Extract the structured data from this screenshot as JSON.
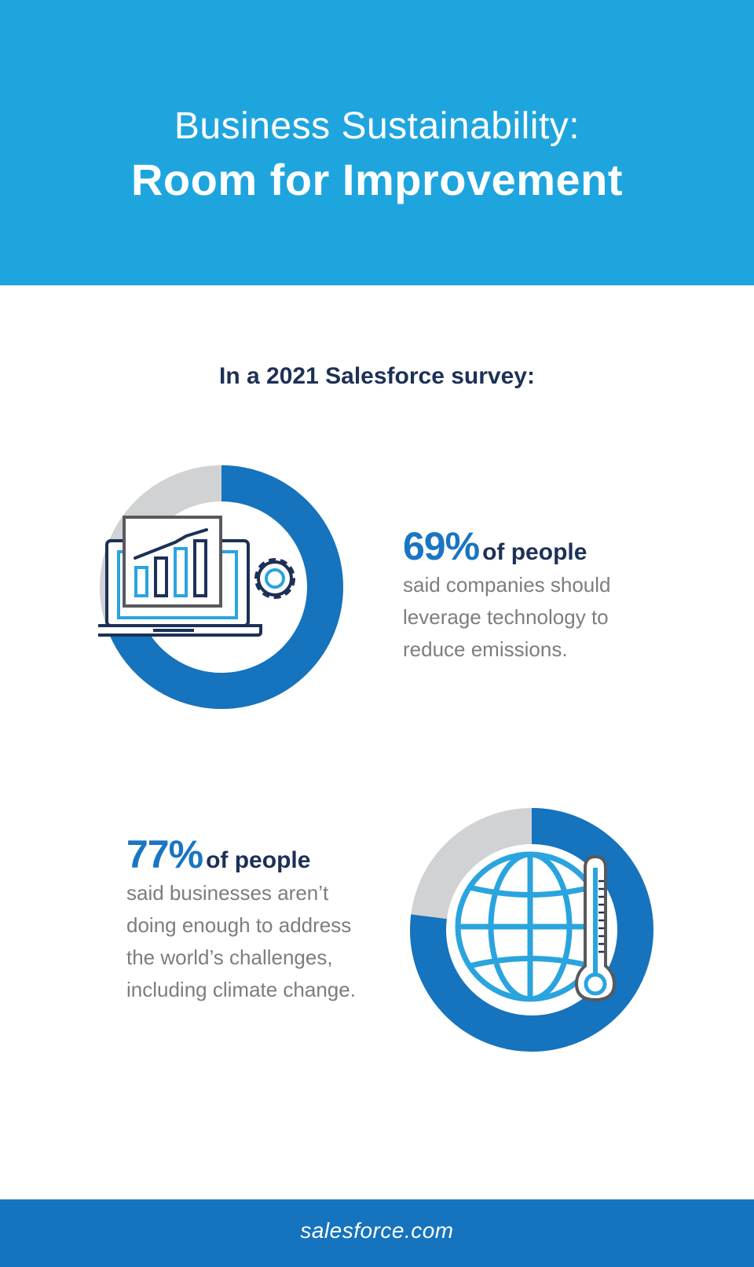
{
  "header": {
    "title_line1": "Business Sustainability:",
    "title_line2": "Room for Improvement"
  },
  "subtitle": "In a 2021 Salesforce survey:",
  "stats": [
    {
      "percent_text": "69%",
      "suffix": "of people",
      "description": "said companies should leverage technology to reduce emissions.",
      "value_fraction": 0.69,
      "icon": "laptop-chart-gear-icon"
    },
    {
      "percent_text": "77%",
      "suffix": "of people",
      "description": "said businesses aren’t doing enough to address the world’s challenges, including climate change.",
      "value_fraction": 0.77,
      "icon": "globe-thermometer-icon"
    }
  ],
  "colors": {
    "header_bg": "#1fa5de",
    "ring_fill": "#1673bd",
    "ring_track": "#d1d2d4",
    "navy": "#1d3057",
    "light_blue": "#2aa4de",
    "gray_text": "#7c7d80",
    "footer_bg": "#1673bd"
  },
  "footer": {
    "text": "salesforce.com"
  }
}
